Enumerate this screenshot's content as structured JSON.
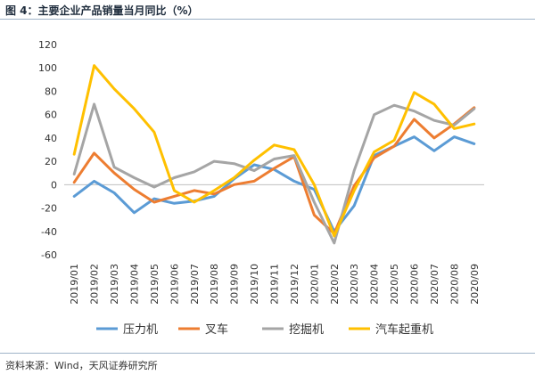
{
  "figure": {
    "title": "图 4：主要企业产品销量当月同比（%）",
    "source": "资料来源：Wind，天风证券研究所"
  },
  "chart_data": {
    "type": "line",
    "title": "",
    "xlabel": "",
    "ylabel": "",
    "ylim": [
      -60,
      120
    ],
    "yticks": [
      -60,
      -40,
      -20,
      0,
      20,
      40,
      60,
      80,
      100,
      120
    ],
    "grid": false,
    "legend_position": "bottom",
    "categories": [
      "2019/01",
      "2019/02",
      "2019/03",
      "2019/04",
      "2019/05",
      "2019/06",
      "2019/07",
      "2019/08",
      "2019/09",
      "2019/10",
      "2019/11",
      "2019/12",
      "2020/01",
      "2020/02",
      "2020/03",
      "2020/04",
      "2020/05",
      "2020/06",
      "2020/07",
      "2020/08",
      "2020/09"
    ],
    "series": [
      {
        "name": "压力机",
        "color": "#5b9bd5",
        "values": [
          -10,
          3,
          -7,
          -24,
          -12,
          -16,
          -14,
          -10,
          5,
          17,
          13,
          3,
          -4,
          -40,
          -18,
          25,
          33,
          41,
          29,
          41,
          35
        ]
      },
      {
        "name": "叉车",
        "color": "#ed7d31",
        "values": [
          2,
          27,
          10,
          -4,
          -15,
          -10,
          -5,
          -8,
          0,
          3,
          14,
          24,
          -26,
          -42,
          -1,
          23,
          33,
          56,
          40,
          52,
          66
        ]
      },
      {
        "name": "挖掘机",
        "color": "#a5a5a5",
        "values": [
          9,
          69,
          15,
          6,
          -2,
          6,
          11,
          20,
          18,
          12,
          22,
          25,
          -15,
          -50,
          12,
          60,
          68,
          63,
          55,
          51,
          65
        ]
      },
      {
        "name": "汽车起重机",
        "color": "#ffc000",
        "values": [
          26,
          102,
          82,
          65,
          45,
          -5,
          -15,
          -5,
          6,
          21,
          34,
          30,
          0,
          -44,
          -5,
          28,
          38,
          79,
          69,
          48,
          52
        ]
      }
    ]
  }
}
